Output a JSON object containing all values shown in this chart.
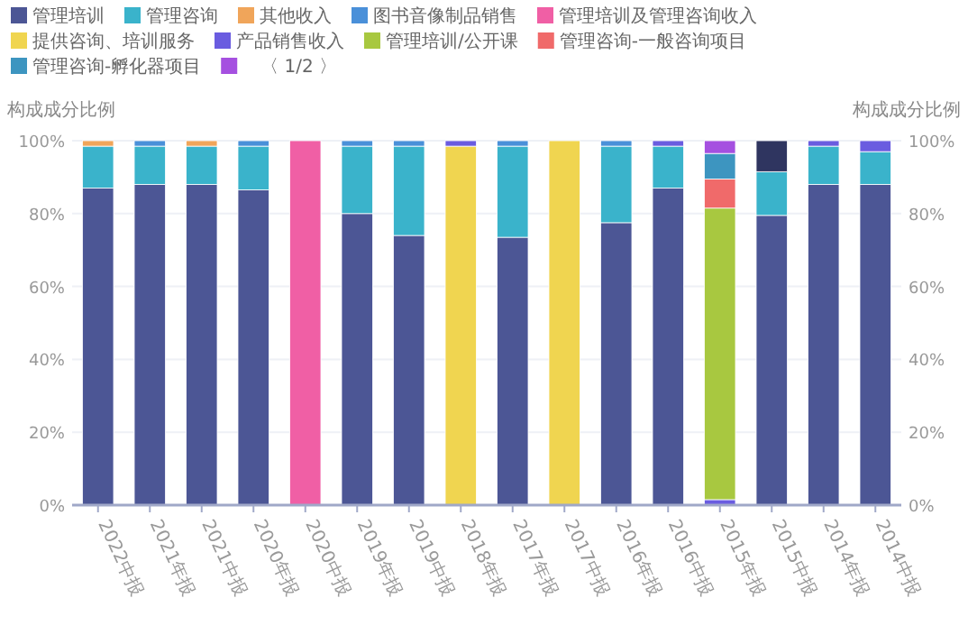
{
  "chart_data": {
    "type": "bar",
    "stacked": true,
    "categories": [
      "2022中报",
      "2021年报",
      "2021中报",
      "2020年报",
      "2020中报",
      "2019年报",
      "2019中报",
      "2018年报",
      "2017年报",
      "2017中报",
      "2016年报",
      "2016中报",
      "2015年报",
      "2015中报",
      "2014年报",
      "2014中报"
    ],
    "series": [
      {
        "name": "管理培训",
        "color": "#4c5695",
        "values": [
          87,
          88,
          88,
          86.5,
          null,
          80,
          74,
          null,
          73.5,
          null,
          77.5,
          87,
          null,
          79.5,
          88,
          88
        ]
      },
      {
        "name": "管理咨询",
        "color": "#3ab3cb",
        "values": [
          11.5,
          10.5,
          10.5,
          12,
          null,
          18.5,
          24.5,
          null,
          25,
          null,
          21,
          11.5,
          null,
          12,
          10.5,
          9
        ]
      },
      {
        "name": "其他收入",
        "color": "#f0a55a",
        "values": [
          1.5,
          null,
          1.5,
          null,
          null,
          null,
          null,
          null,
          null,
          null,
          null,
          null,
          null,
          null,
          null,
          null
        ]
      },
      {
        "name": "图书音像制品销售",
        "color": "#4a90d9",
        "values": [
          null,
          1.5,
          null,
          1.5,
          null,
          1.5,
          1.5,
          null,
          1.5,
          null,
          1.5,
          null,
          null,
          null,
          null,
          null
        ]
      },
      {
        "name": "管理培训及管理咨询收入",
        "color": "#f05fa5",
        "values": [
          null,
          null,
          null,
          null,
          100,
          null,
          null,
          null,
          null,
          null,
          null,
          null,
          null,
          null,
          null,
          null
        ]
      },
      {
        "name": "提供咨询、培训服务",
        "color": "#f0d550",
        "values": [
          null,
          null,
          null,
          null,
          null,
          null,
          null,
          98.5,
          null,
          100,
          null,
          null,
          null,
          null,
          null,
          null
        ]
      },
      {
        "name": "产品销售收入",
        "color": "#6a5ce0",
        "values": [
          null,
          null,
          null,
          null,
          null,
          null,
          null,
          1.5,
          null,
          null,
          null,
          1.5,
          1.5,
          null,
          1.5,
          3
        ]
      },
      {
        "name": "管理培训/公开课",
        "color": "#a8c840",
        "values": [
          null,
          null,
          null,
          null,
          null,
          null,
          null,
          null,
          null,
          null,
          null,
          null,
          80,
          null,
          null,
          null
        ]
      },
      {
        "name": "管理咨询-一般咨询项目",
        "color": "#f06a6a",
        "values": [
          null,
          null,
          null,
          null,
          null,
          null,
          null,
          null,
          null,
          null,
          null,
          null,
          8,
          null,
          null,
          null
        ]
      },
      {
        "name": "管理咨询-孵化器项目",
        "color": "#3d95c0",
        "values": [
          null,
          null,
          null,
          null,
          null,
          null,
          null,
          null,
          null,
          null,
          null,
          null,
          7,
          null,
          null,
          null
        ]
      },
      {
        "color": "#a550e0",
        "values": [
          null,
          null,
          null,
          null,
          null,
          null,
          null,
          null,
          null,
          null,
          null,
          null,
          3.5,
          null,
          null,
          null
        ]
      },
      {
        "color": "#2f3560",
        "values": [
          null,
          null,
          null,
          null,
          null,
          null,
          null,
          null,
          null,
          null,
          null,
          null,
          null,
          8.5,
          null,
          null
        ]
      }
    ],
    "ylabel": "构成成分比例",
    "y2label": "构成成分比例",
    "ylim": [
      0,
      100
    ],
    "yticks": [
      {
        "value": 0,
        "label": "0%"
      },
      {
        "value": 20,
        "label": "20%"
      },
      {
        "value": 40,
        "label": "40%"
      },
      {
        "value": 60,
        "label": "60%"
      },
      {
        "value": 80,
        "label": "80%"
      },
      {
        "value": 100,
        "label": "100%"
      }
    ],
    "y2lim": [
      0,
      100
    ],
    "y2ticks": [
      {
        "value": 0,
        "label": "0%"
      },
      {
        "value": 20,
        "label": "20%"
      },
      {
        "value": 40,
        "label": "40%"
      },
      {
        "value": 60,
        "label": "60%"
      },
      {
        "value": 80,
        "label": "80%"
      },
      {
        "value": 100,
        "label": "100%"
      }
    ],
    "annotations": [
      "〈 1/2 〉"
    ],
    "grid": "y",
    "legend": "top"
  }
}
